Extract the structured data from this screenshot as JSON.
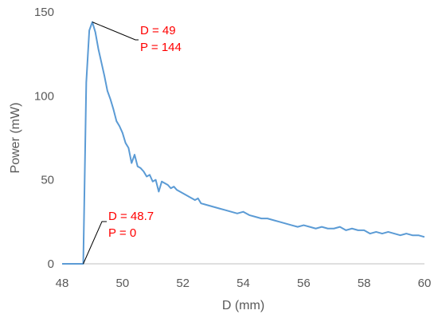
{
  "chart_data": {
    "type": "line",
    "title": "",
    "xlabel": "D (mm)",
    "ylabel": "Power (mW)",
    "xlim": [
      48,
      60
    ],
    "ylim": [
      0,
      150
    ],
    "x_ticks": [
      48,
      50,
      52,
      54,
      56,
      58,
      60
    ],
    "y_ticks": [
      0,
      50,
      100,
      150
    ],
    "x_tick_labels": [
      "48",
      "50",
      "52",
      "54",
      "56",
      "58",
      "60"
    ],
    "y_tick_labels": [
      "0",
      "50",
      "100",
      "150"
    ],
    "grid": false,
    "legend": "none",
    "series_color": "#5b9bd5",
    "series": [
      {
        "x": [
          48.0,
          48.2,
          48.4,
          48.6,
          48.7,
          48.8,
          48.9,
          49.0,
          49.1,
          49.2,
          49.3,
          49.4,
          49.5,
          49.6,
          49.7,
          49.8,
          49.9,
          50.0,
          50.1,
          50.2,
          50.3,
          50.4,
          50.5,
          50.6,
          50.7,
          50.8,
          50.9,
          51.0,
          51.1,
          51.2,
          51.3,
          51.4,
          51.5,
          51.6,
          51.7,
          51.8,
          51.9,
          52.0,
          52.2,
          52.4,
          52.5,
          52.6,
          52.8,
          53.0,
          53.2,
          53.4,
          53.6,
          53.8,
          54.0,
          54.2,
          54.4,
          54.6,
          54.8,
          55.0,
          55.2,
          55.4,
          55.6,
          55.8,
          56.0,
          56.2,
          56.4,
          56.6,
          56.8,
          57.0,
          57.2,
          57.4,
          57.6,
          57.8,
          58.0,
          58.2,
          58.4,
          58.6,
          58.8,
          59.0,
          59.2,
          59.4,
          59.6,
          59.8,
          60.0
        ],
        "y": [
          0,
          0,
          0,
          0,
          0,
          108,
          139,
          144,
          138,
          128,
          120,
          112,
          103,
          98,
          92,
          85,
          82,
          78,
          72,
          69,
          60,
          65,
          58,
          57,
          55,
          52,
          53,
          49,
          50,
          43,
          49,
          48,
          47,
          45,
          46,
          44,
          43,
          42,
          40,
          38,
          39,
          36,
          35,
          34,
          33,
          32,
          31,
          30,
          31,
          29,
          28,
          27,
          27,
          26,
          25,
          24,
          23,
          22,
          23,
          22,
          21,
          22,
          21,
          21,
          22,
          20,
          21,
          20,
          20,
          18,
          19,
          18,
          19,
          18,
          17,
          18,
          17,
          17,
          16
        ]
      }
    ],
    "annotations": [
      {
        "text_lines": [
          "D = 49",
          "P = 144"
        ],
        "point": [
          49,
          144
        ]
      },
      {
        "text_lines": [
          "D = 48.7",
          "P = 0"
        ],
        "point": [
          48.7,
          0
        ]
      }
    ]
  }
}
